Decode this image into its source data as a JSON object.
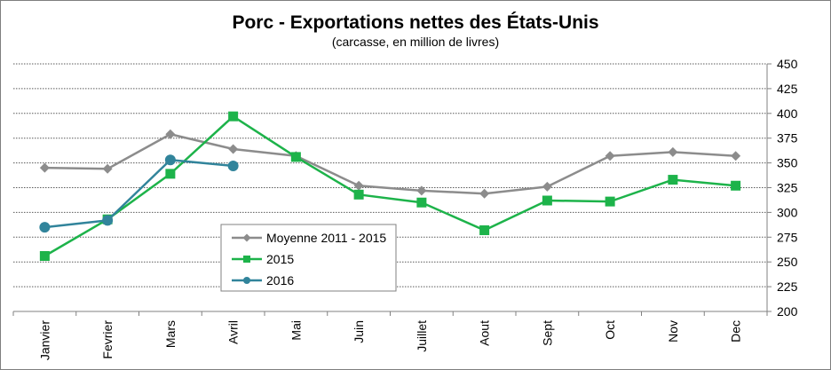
{
  "chart_data": {
    "type": "line",
    "title": "Porc - Exportations nettes des États-Unis",
    "subtitle": "(carcasse, en million de livres)",
    "categories": [
      "Janvier",
      "Fevrier",
      "Mars",
      "Avril",
      "Mai",
      "Juin",
      "Juillet",
      "Aout",
      "Sept",
      "Oct",
      "Nov",
      "Dec"
    ],
    "y_ticks": [
      "450",
      "425",
      "400",
      "375",
      "350",
      "325",
      "300",
      "275",
      "250",
      "225",
      "200"
    ],
    "ylim": [
      200,
      450
    ],
    "grid": "horizontal-dotted",
    "legend_position": "center-left",
    "series": [
      {
        "name": "Moyenne 2011 - 2015",
        "color": "#8c8c8c",
        "marker": "diamond",
        "values": [
          345,
          344,
          379,
          364,
          357,
          327,
          322,
          319,
          326,
          357,
          361,
          357
        ]
      },
      {
        "name": "2015",
        "color": "#1db34a",
        "marker": "square",
        "values": [
          256,
          293,
          339,
          397,
          356,
          318,
          310,
          282,
          312,
          311,
          333,
          327
        ]
      },
      {
        "name": "2016",
        "color": "#31849b",
        "marker": "circle",
        "values": [
          285,
          292,
          353,
          347,
          null,
          null,
          null,
          null,
          null,
          null,
          null,
          null
        ]
      }
    ]
  }
}
